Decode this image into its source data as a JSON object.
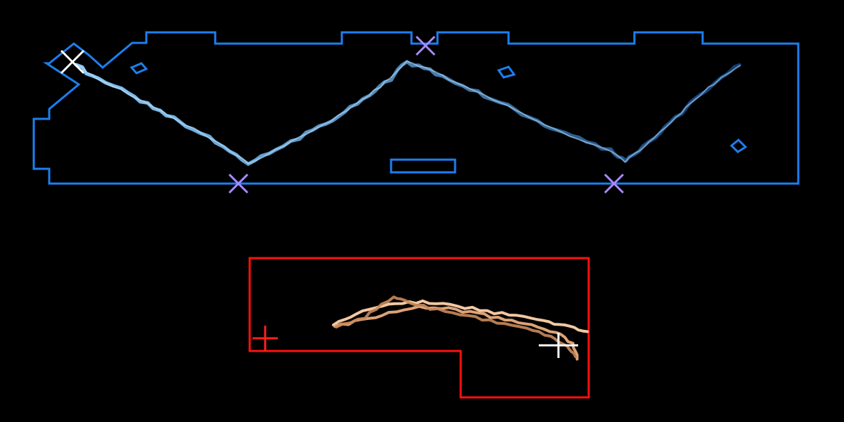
{
  "colors": {
    "background": "#000000",
    "map_top_outline": "#1c7ff0",
    "map_bottom_outline": "#ff1010",
    "top_path_gradient": [
      "#8fd0ff",
      "#0f3f78"
    ],
    "bottom_path_colors": [
      "#ffd3aa",
      "#f0b080",
      "#c98a5c"
    ],
    "top_event_marker": "#a98aff",
    "bottom_start_marker": "#ff2020",
    "current_position_marker": "#ffffff"
  },
  "icons": {
    "top_event_marker": "x-cross-icon",
    "bottom_start_marker": "plus-cross-icon",
    "current_position_marker": "white-cross-icon"
  },
  "scene": {
    "top_region": {
      "path_style": "zigzag trajectory",
      "event_markers": 3,
      "start_marker": 1
    },
    "bottom_region": {
      "path_style": "arched bundled trajectories",
      "event_markers": 1,
      "start_marker": 1
    }
  }
}
